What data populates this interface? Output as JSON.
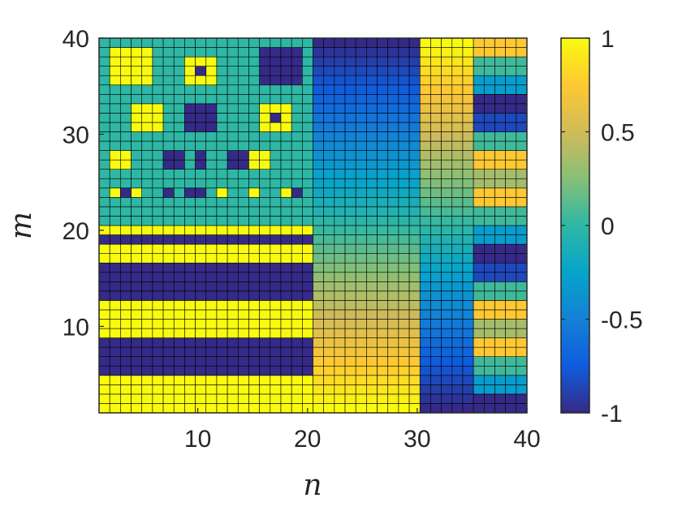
{
  "chart_data": {
    "type": "heatmap",
    "title": "",
    "xlabel": "n",
    "ylabel": "m",
    "xlim": [
      1,
      40
    ],
    "ylim": [
      1,
      40
    ],
    "grid": false,
    "colormap": "parula",
    "colorbar": {
      "range": [
        -1,
        1
      ],
      "ticks": [
        -1,
        -0.5,
        0,
        0.5,
        1
      ],
      "tick_labels": [
        "-1",
        "-0.5",
        "0",
        "0.5",
        "1"
      ],
      "position": "right"
    },
    "x_ticks": [
      10,
      20,
      30,
      40
    ],
    "x_tick_labels": [
      "10",
      "20",
      "30",
      "40"
    ],
    "y_ticks": [
      10,
      20,
      30,
      40
    ],
    "y_tick_labels": [
      "10",
      "20",
      "30",
      "40"
    ],
    "cells": {
      "rows": 40,
      "cols": 40,
      "description_regions": {
        "n_1_20_m_1_20": "horizontal bands alternating +1 / -1",
        "n_1_20_m_21_40": "0 background with +1 and -1 square blocks",
        "n_21_30": "column-independent gradient: -1 at m=40 rising to +1 at m=1",
        "n_31_35": "gradient: +1 at m=40 falling to -1 at m=1",
        "n_36_40": "row bands cycling through values near -1, 0, 0.3, 0.7"
      }
    }
  },
  "colors": {
    "c_min": "#352a87",
    "c_mid": "#21b1a8",
    "c_max": "#f9fb0e",
    "grid_line": "#000000",
    "axis": "#262626"
  }
}
